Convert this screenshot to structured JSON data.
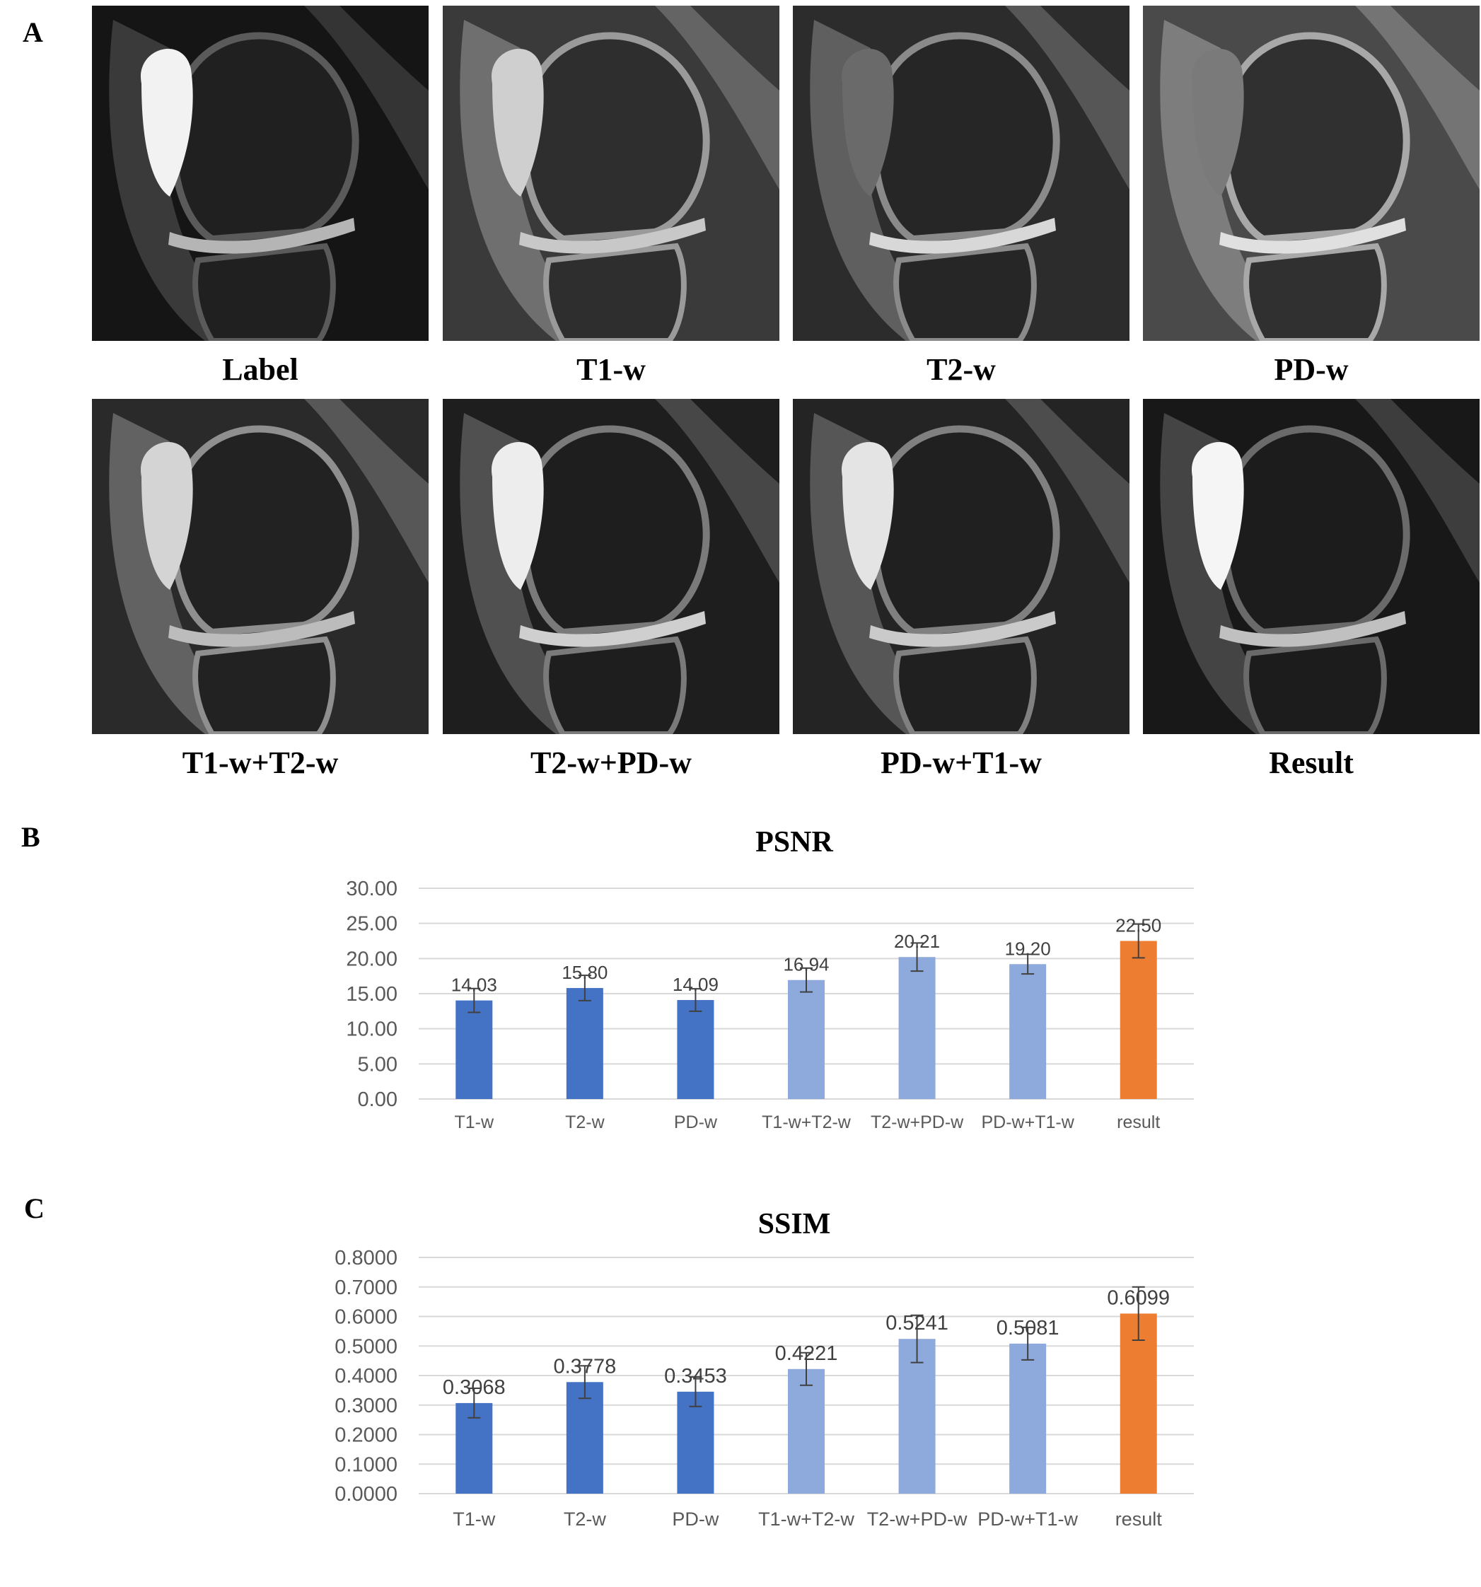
{
  "panels": {
    "a": "A",
    "b": "B",
    "c": "C"
  },
  "mri_captions": [
    "Label",
    "T1-w",
    "T2-w",
    "PD-w",
    "T1-w+T2-w",
    "T2-w+PD-w",
    "PD-w+T1-w",
    "Result"
  ],
  "colors": {
    "single": "#4472C4",
    "combined": "#8EA9DB",
    "result": "#ED7D31"
  },
  "chart_data": [
    {
      "type": "bar",
      "title": "PSNR",
      "categories": [
        "T1-w",
        "T2-w",
        "PD-w",
        "T1-w+T2-w",
        "T2-w+PD-w",
        "PD-w+T1-w",
        "result"
      ],
      "values": [
        14.03,
        15.8,
        14.09,
        16.94,
        20.21,
        19.2,
        22.5
      ],
      "value_labels": [
        "14.03",
        "15.80",
        "14.09",
        "16.94",
        "20.21",
        "19.20",
        "22.50"
      ],
      "error": [
        1.7,
        1.8,
        1.6,
        1.7,
        2.0,
        1.4,
        2.4
      ],
      "bar_colors": [
        "single",
        "single",
        "single",
        "combined",
        "combined",
        "combined",
        "result"
      ],
      "ylim": [
        0,
        30
      ],
      "yticks": [
        "0.00",
        "5.00",
        "10.00",
        "15.00",
        "20.00",
        "25.00",
        "30.00"
      ],
      "xlabel": "",
      "ylabel": "",
      "grid": true
    },
    {
      "type": "bar",
      "title": "SSIM",
      "categories": [
        "T1-w",
        "T2-w",
        "PD-w",
        "T1-w+T2-w",
        "T2-w+PD-w",
        "PD-w+T1-w",
        "result"
      ],
      "values": [
        0.3068,
        0.3778,
        0.3453,
        0.4221,
        0.5241,
        0.5081,
        0.6099
      ],
      "value_labels": [
        "0.3068",
        "0.3778",
        "0.3453",
        "0.4221",
        "0.5241",
        "0.5081",
        "0.6099"
      ],
      "error": [
        0.05,
        0.055,
        0.05,
        0.055,
        0.08,
        0.055,
        0.09
      ],
      "bar_colors": [
        "single",
        "single",
        "single",
        "combined",
        "combined",
        "combined",
        "result"
      ],
      "ylim": [
        0,
        0.8
      ],
      "yticks": [
        "0.0000",
        "0.1000",
        "0.2000",
        "0.3000",
        "0.4000",
        "0.5000",
        "0.6000",
        "0.7000",
        "0.8000"
      ],
      "xlabel": "",
      "ylabel": "",
      "grid": true
    }
  ]
}
